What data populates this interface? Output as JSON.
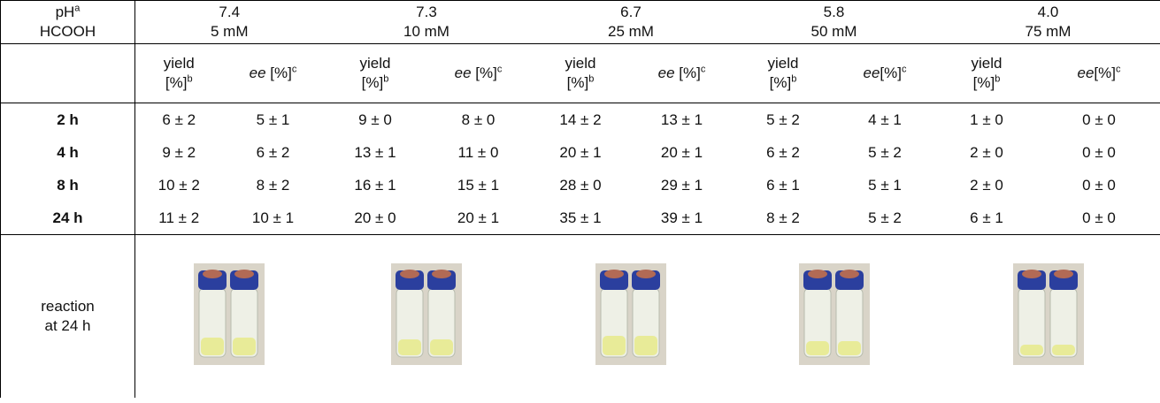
{
  "table": {
    "header": {
      "label_lines": [
        "pH",
        "HCOOH"
      ],
      "label_sup": "a",
      "groups": [
        {
          "ph": "7.4",
          "hcooh": "5 mM",
          "yield_word": "yield",
          "yield_unit": "[%]",
          "yield_sup": "b",
          "ee_word": "ee",
          "ee_unit": " [%]",
          "ee_sup": "c"
        },
        {
          "ph": "7.3",
          "hcooh": "10 mM",
          "yield_word": "yield",
          "yield_unit": "[%]",
          "yield_sup": "b",
          "ee_word": "ee",
          "ee_unit": " [%]",
          "ee_sup": "c"
        },
        {
          "ph": "6.7",
          "hcooh": "25 mM",
          "yield_word": "yield",
          "yield_unit": "[%]",
          "yield_sup": "b",
          "ee_word": "ee",
          "ee_unit": " [%]",
          "ee_sup": "c"
        },
        {
          "ph": "5.8",
          "hcooh": "50 mM",
          "yield_word": "yield",
          "yield_unit": "[%]",
          "yield_sup": "b",
          "ee_word": "ee",
          "ee_unit": "[%]",
          "ee_sup": "c"
        },
        {
          "ph": "4.0",
          "hcooh": "75 mM",
          "yield_word": "yield",
          "yield_unit": "[%]",
          "yield_sup": "b",
          "ee_word": "ee",
          "ee_unit": "[%]",
          "ee_sup": "c"
        }
      ]
    },
    "rows": [
      {
        "label": "2 h",
        "cells": [
          "6 ± 2",
          "5 ± 1",
          "9 ± 0",
          "8 ± 0",
          "14 ± 2",
          "13 ± 1",
          "5 ± 2",
          "4 ± 1",
          "1 ± 0",
          "0 ± 0"
        ]
      },
      {
        "label": "4 h",
        "cells": [
          "9 ± 2",
          "6 ± 2",
          "13 ± 1",
          "11 ± 0",
          "20 ± 1",
          "20 ± 1",
          "6 ± 2",
          "5 ± 2",
          "2 ± 0",
          "0 ± 0"
        ]
      },
      {
        "label": "8 h",
        "cells": [
          "10 ± 2",
          "8 ± 2",
          "16 ± 1",
          "15 ± 1",
          "28 ± 0",
          "29 ± 1",
          "6 ± 1",
          "5 ± 1",
          "2 ± 0",
          "0 ± 0"
        ]
      },
      {
        "label": "24 h",
        "cells": [
          "11 ± 2",
          "10 ± 1",
          "20 ± 0",
          "20 ± 1",
          "35 ± 1",
          "39 ± 1",
          "8 ± 2",
          "5 ± 2",
          "6 ± 1",
          "0 ± 0"
        ]
      }
    ],
    "reaction_label_lines": [
      "reaction",
      "at 24 h"
    ]
  }
}
